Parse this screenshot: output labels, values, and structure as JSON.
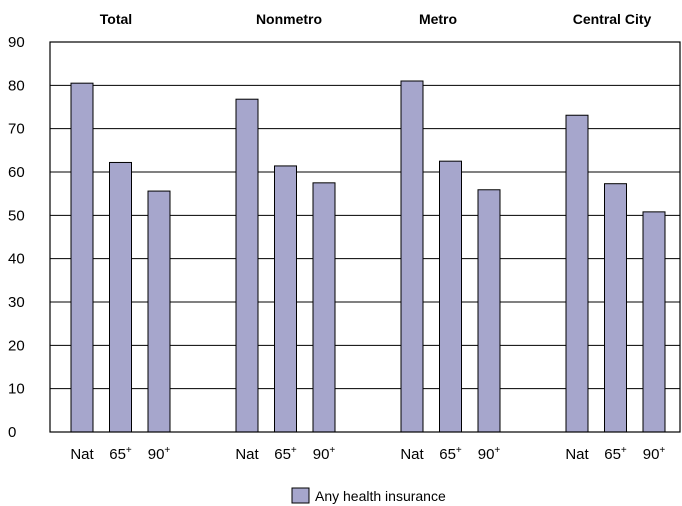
{
  "chart_data": {
    "type": "bar",
    "groups": [
      {
        "title": "Total",
        "categories": [
          "Nat",
          "65+",
          "90+"
        ],
        "values": [
          80.5,
          62.2,
          55.6
        ]
      },
      {
        "title": "Nonmetro",
        "categories": [
          "Nat",
          "65+",
          "90+"
        ],
        "values": [
          76.8,
          61.4,
          57.5
        ]
      },
      {
        "title": "Metro",
        "categories": [
          "Nat",
          "65+",
          "90+"
        ],
        "values": [
          81.0,
          62.5,
          55.9
        ]
      },
      {
        "title": "Central City",
        "categories": [
          "Nat",
          "65+",
          "90+"
        ],
        "values": [
          73.1,
          57.3,
          50.8
        ]
      }
    ],
    "series": [
      {
        "name": "Any health insurance"
      }
    ],
    "ylim": [
      0,
      90
    ],
    "yticks": [
      0,
      10,
      20,
      30,
      40,
      50,
      60,
      70,
      80,
      90
    ],
    "grid": true,
    "legend_position": "bottom-center",
    "colors": {
      "bar": "#a6a6cc",
      "grid": "#000000"
    }
  }
}
